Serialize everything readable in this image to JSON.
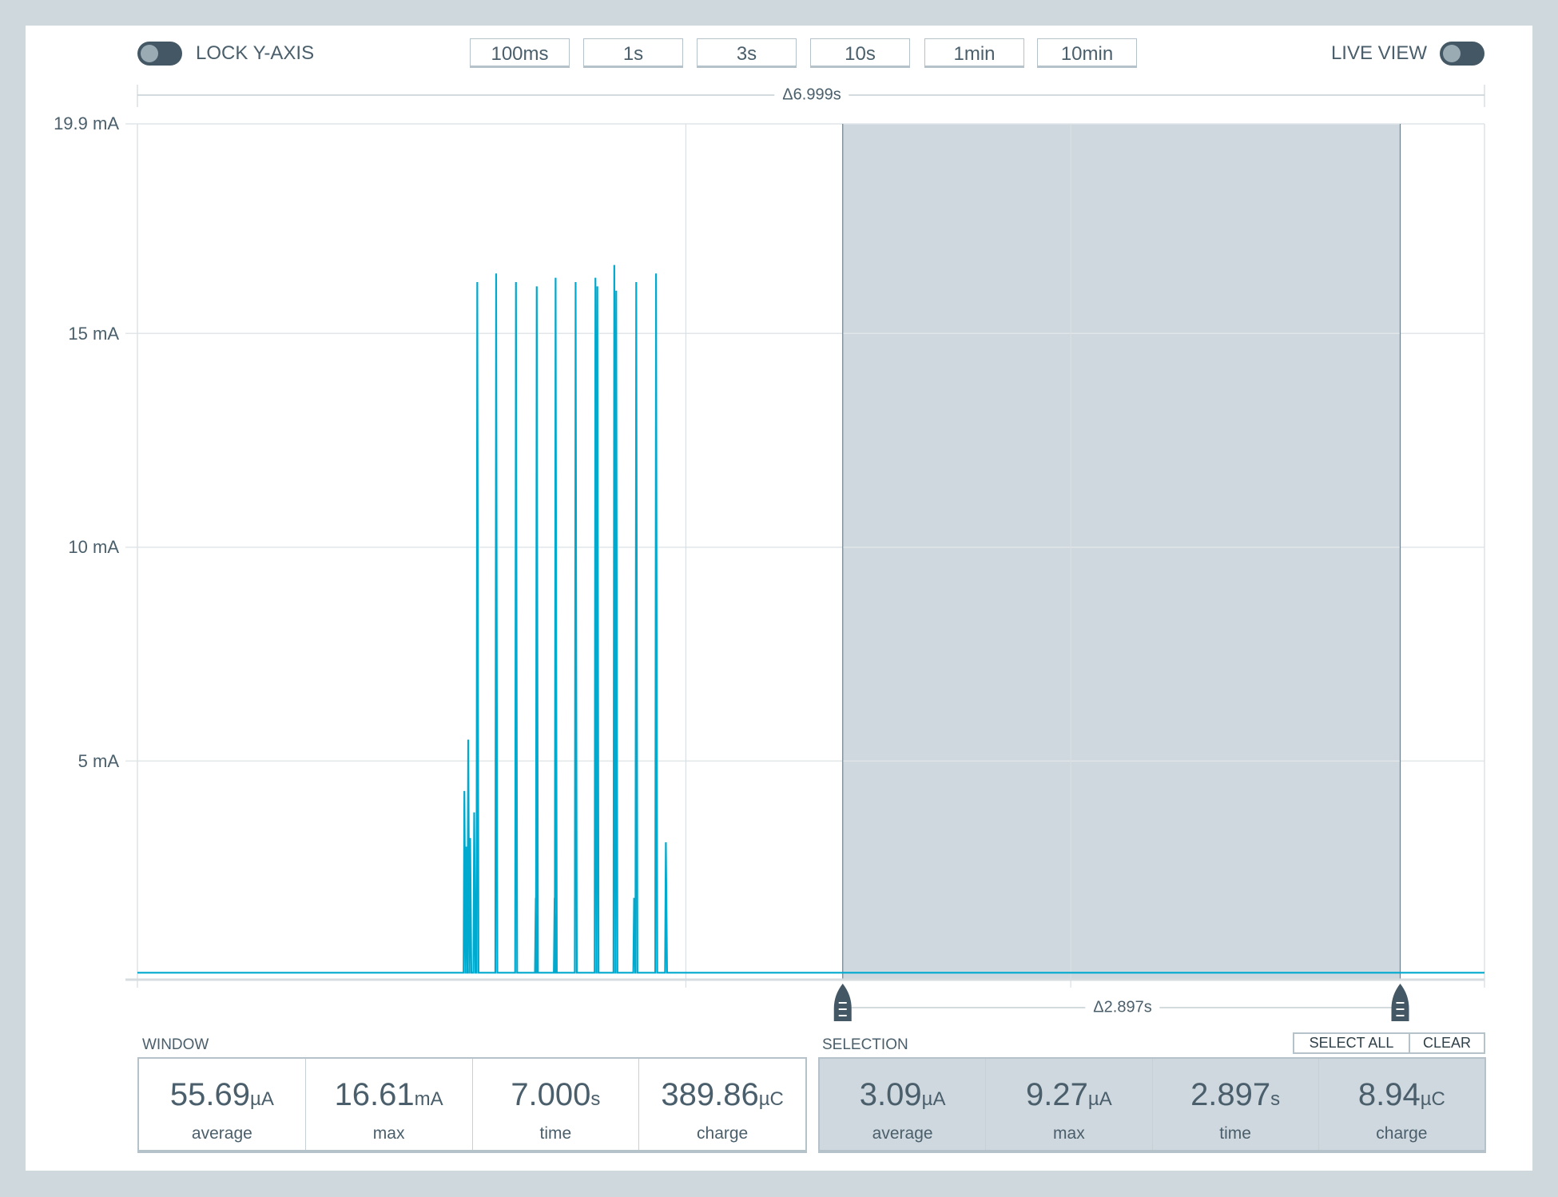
{
  "toolbar": {
    "lock_y_axis_label": "LOCK Y-AXIS",
    "lock_y_axis_on": false,
    "live_view_label": "LIVE VIEW",
    "live_view_on": false,
    "window_buttons": [
      "100ms",
      "1s",
      "3s",
      "10s",
      "1min",
      "10min"
    ]
  },
  "window_delta": "Δ6.999s",
  "selection_delta": "Δ2.897s",
  "colors": {
    "trace": "#00a9ce",
    "selection": "#cfd8de",
    "handle": "#435764",
    "text": "#4a5f6b"
  },
  "chart_data": {
    "type": "line",
    "ylabel_ticks": [
      "19.9 mA",
      "15 mA",
      "10 mA",
      "5 mA"
    ],
    "ytick_values": [
      19.9,
      15,
      10,
      5
    ],
    "ylim": [
      0,
      19.9
    ],
    "xlim_s": [
      0,
      7.0
    ],
    "unit": "mA",
    "selection_s": [
      3.665,
      6.562
    ],
    "baseline_mA": 0.05,
    "spikes": [
      {
        "t": 1.699,
        "mA": 4.3
      },
      {
        "t": 1.709,
        "mA": 3.0
      },
      {
        "t": 1.719,
        "mA": 5.5
      },
      {
        "t": 1.729,
        "mA": 3.2
      },
      {
        "t": 1.75,
        "mA": 3.8
      },
      {
        "t": 1.766,
        "mA": 16.2
      },
      {
        "t": 1.864,
        "mA": 16.4
      },
      {
        "t": 1.967,
        "mA": 16.2
      },
      {
        "t": 2.07,
        "mA": 1.8
      },
      {
        "t": 2.075,
        "mA": 16.1
      },
      {
        "t": 2.168,
        "mA": 1.8
      },
      {
        "t": 2.173,
        "mA": 16.3
      },
      {
        "t": 2.277,
        "mA": 16.2
      },
      {
        "t": 2.38,
        "mA": 16.3
      },
      {
        "t": 2.39,
        "mA": 16.1
      },
      {
        "t": 2.478,
        "mA": 16.6
      },
      {
        "t": 2.488,
        "mA": 16.0
      },
      {
        "t": 2.581,
        "mA": 1.8
      },
      {
        "t": 2.592,
        "mA": 16.2
      },
      {
        "t": 2.695,
        "mA": 16.4
      },
      {
        "t": 2.746,
        "mA": 3.1
      }
    ],
    "grid_x_s": [
      2.85,
      4.85
    ],
    "grid": true
  },
  "window_stats": {
    "label": "WINDOW",
    "items": [
      {
        "value": "55.69",
        "unit": "µA",
        "caption": "average"
      },
      {
        "value": "16.61",
        "unit": "mA",
        "caption": "max"
      },
      {
        "value": "7.000",
        "unit": "s",
        "caption": "time"
      },
      {
        "value": "389.86",
        "unit": "µC",
        "caption": "charge"
      }
    ]
  },
  "selection_stats": {
    "label": "SELECTION",
    "select_all": "SELECT ALL",
    "clear": "CLEAR",
    "items": [
      {
        "value": "3.09",
        "unit": "µA",
        "caption": "average"
      },
      {
        "value": "9.27",
        "unit": "µA",
        "caption": "max"
      },
      {
        "value": "2.897",
        "unit": "s",
        "caption": "time"
      },
      {
        "value": "8.94",
        "unit": "µC",
        "caption": "charge"
      }
    ]
  }
}
